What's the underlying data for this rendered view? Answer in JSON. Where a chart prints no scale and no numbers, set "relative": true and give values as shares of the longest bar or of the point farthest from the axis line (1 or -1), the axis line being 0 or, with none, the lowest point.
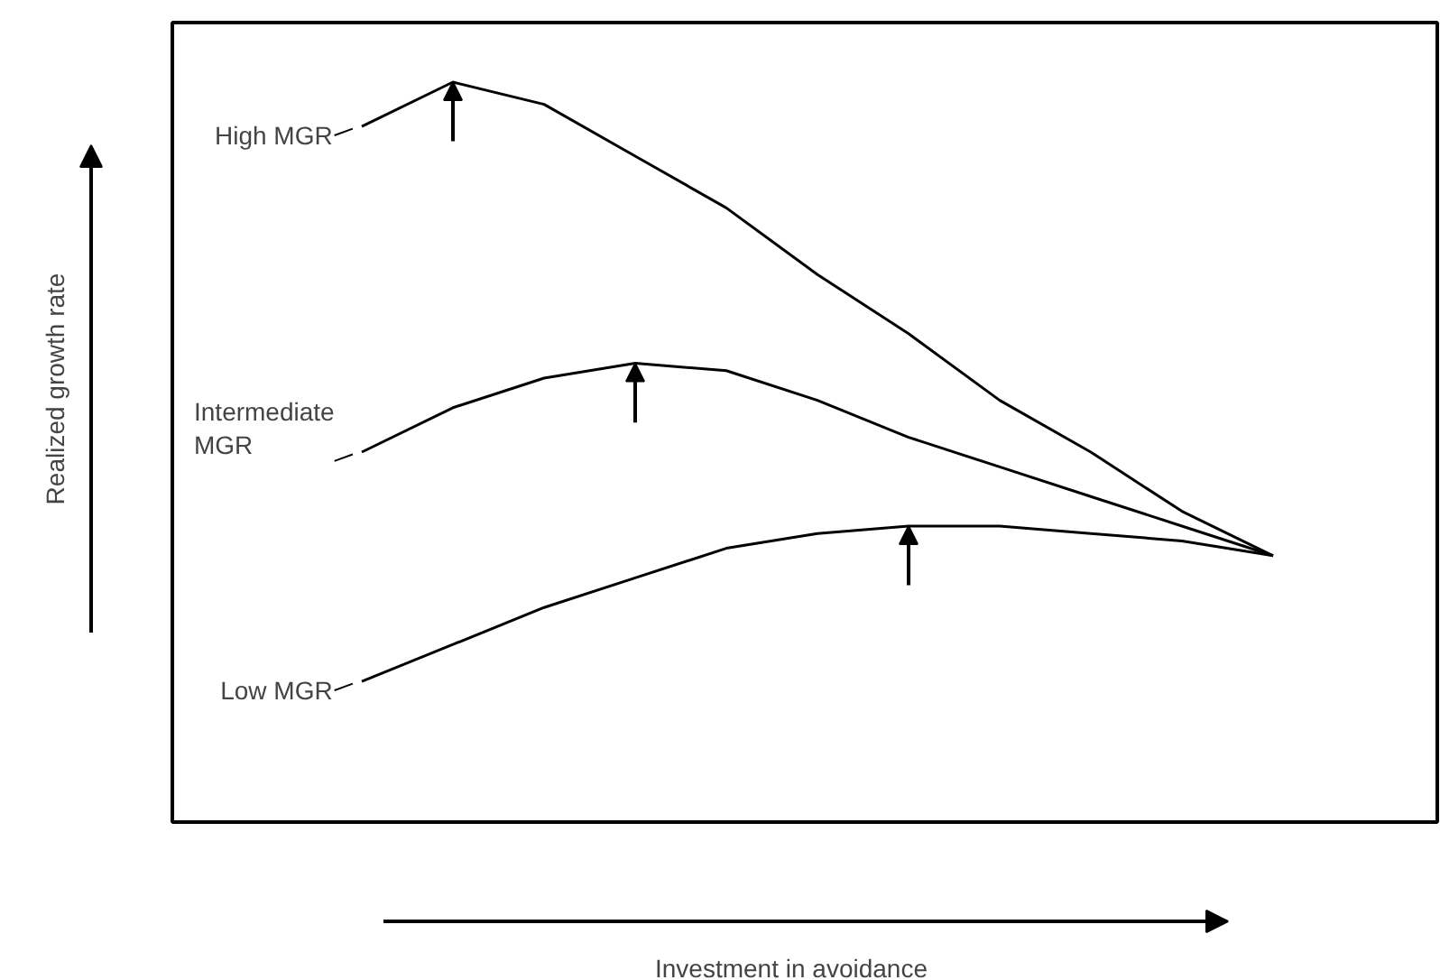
{
  "chart_data": {
    "type": "line",
    "relative": true,
    "annotations": [
      "Realized growth rate",
      "Investment in avoidance"
    ],
    "categories": [
      null,
      null,
      null,
      null,
      null,
      null,
      null,
      null,
      null,
      null,
      null
    ],
    "marker": "none",
    "line_style": "solid",
    "grid": false,
    "legend": "left",
    "series": [
      {
        "name": "High MGR",
        "color": "#000000",
        "values": [
          0.94,
          1.0,
          0.97,
          0.9,
          0.83,
          0.74,
          0.66,
          0.57,
          0.5,
          0.42,
          0.36
        ]
      },
      {
        "name": "Intermediate\nMGR",
        "color": "#000000",
        "values": [
          0.5,
          0.56,
          0.6,
          0.62,
          0.61,
          0.57,
          0.52,
          0.48,
          0.44,
          0.4,
          0.36
        ]
      },
      {
        "name": "Low MGR",
        "color": "#000000",
        "values": [
          0.19,
          0.24,
          0.29,
          0.33,
          0.37,
          0.39,
          0.4,
          0.4,
          0.39,
          0.38,
          0.36
        ]
      }
    ]
  }
}
